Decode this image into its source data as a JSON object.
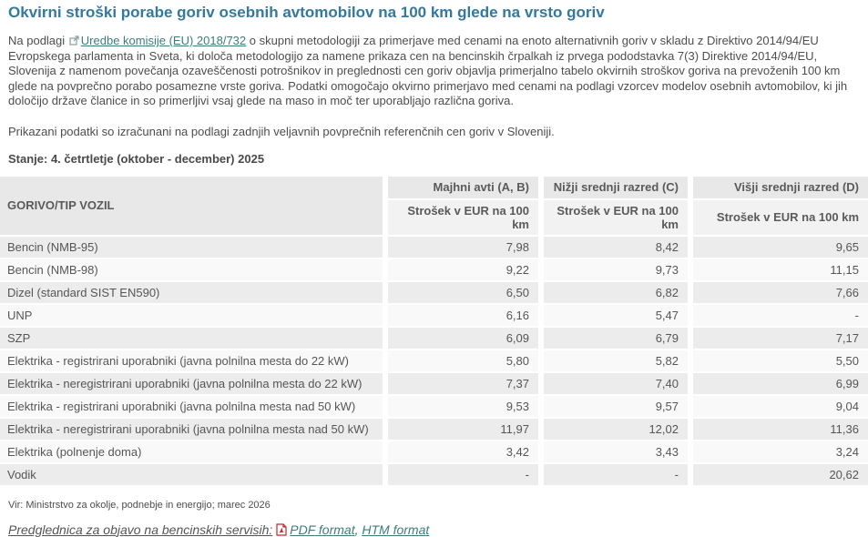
{
  "page": {
    "title": "Okvirni stroški porabe goriv osebnih avtomobilov na 100 km glede na vrsto goriv",
    "intro": {
      "prefix": "Na podlagi ",
      "link_text": "Uredbe komisije (EU) 2018/732",
      "rest": " o skupni metodologiji za primerjave med cenami na enoto alternativnih goriv v skladu z Direktivo 2014/94/EU Evropskega parlamenta in Sveta, ki določa metodologijo za namene prikaza cen na bencinskih črpalkah iz prvega pododstavka 7(3) Direktive 2014/94/EU, Slovenija z namenom povečanja ozaveščenosti potrošnikov in preglednosti cen goriv objavlja primerjalno tabelo okvirnih stroškov goriva na prevoženih 100 km glede na povprečno porabo posamezne vrste goriva. Podatki omogočajo okvirno primerjavo med cenami na podlagi vzorcev modelov osebnih avtomobilov, ki jih določijo države članice in so primerljivi vsaj glede na maso in moč ter uporabljajo različna goriva."
    },
    "note": "Prikazani podatki so izračunani na podlagi zadnjih veljavnih povprečnih referenčnih cen goriv v Sloveniji.",
    "status": "Stanje: 4. četrtletje (oktober - december) 2025"
  },
  "table": {
    "col_header_label": "GORIVO/TIP VOZIL",
    "col_groups": [
      "Majhni avti (A, B)",
      "Nižji srednji razred (C)",
      "Višji srednji razred (D)"
    ],
    "sub_header": "Strošek v EUR na 100 km",
    "rows": [
      {
        "label": "Bencin (NMB-95)",
        "values": [
          "7,98",
          "8,42",
          "9,65"
        ]
      },
      {
        "label": "Bencin (NMB-98)",
        "values": [
          "9,22",
          "9,73",
          "11,15"
        ]
      },
      {
        "label": "Dizel (standard SIST EN590)",
        "values": [
          "6,50",
          "6,82",
          "7,66"
        ]
      },
      {
        "label": "UNP",
        "values": [
          "6,16",
          "5,47",
          "-"
        ]
      },
      {
        "label": "SZP",
        "values": [
          "6,09",
          "6,79",
          "7,17"
        ]
      },
      {
        "label": "Elektrika - registrirani uporabniki (javna polnilna mesta do 22 kW)",
        "values": [
          "5,80",
          "5,82",
          "5,50"
        ]
      },
      {
        "label": "Elektrika - neregistrirani uporabniki (javna polnilna mesta do 22 kW)",
        "values": [
          "7,37",
          "7,40",
          "6,99"
        ]
      },
      {
        "label": "Elektrika - registrirani uporabniki (javna polnilna mesta nad 50 kW)",
        "values": [
          "9,53",
          "9,57",
          "9,04"
        ]
      },
      {
        "label": "Elektrika - neregistrirani uporabniki (javna polnilna mesta nad 50 kW)",
        "values": [
          "11,97",
          "12,02",
          "11,36"
        ]
      },
      {
        "label": "Elektrika (polnenje doma)",
        "values": [
          "3,42",
          "3,43",
          "3,24"
        ]
      },
      {
        "label": "Vodik",
        "values": [
          "-",
          "-",
          "20,62"
        ]
      }
    ]
  },
  "footer": {
    "source": "Vir: Ministrstvo za okolje, podnebje in energijo; marec 2026",
    "downloads_label": "Predglednica za objavo na bencinskih servisih:",
    "pdf_link": "PDF format",
    "separator": ", ",
    "htm_link": "HTM format"
  },
  "colors": {
    "title": "#35789e",
    "link": "#3d7c7e",
    "pdf_icon": "#c1272d",
    "header_bg": "#e8e8e8",
    "subheader_bg": "#f2f2f2",
    "row_odd_bg": "#ececec",
    "row_even_bg": "#f9f9f9"
  }
}
